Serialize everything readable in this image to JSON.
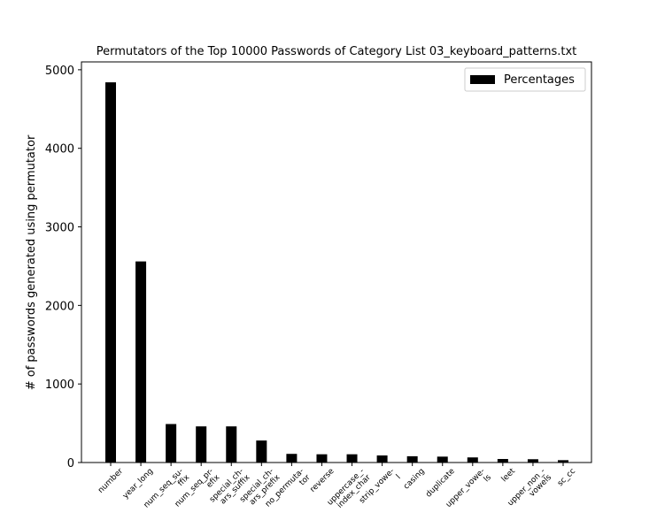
{
  "chart_data": {
    "type": "bar",
    "title": "Permutators of the Top 10000 Passwords of Category List 03_keyboard_patterns.txt",
    "xlabel": "",
    "ylabel": "# of passwords generated using permutator",
    "ylim": [
      0,
      5100
    ],
    "yticks": [
      0,
      1000,
      2000,
      3000,
      4000,
      5000
    ],
    "categories": [
      "number",
      "year_long",
      "num_seq_su-\nffix",
      "num_seq_pr-\nefix",
      "special_ch-\nars_suffix",
      "special_ch-\nars_prefix",
      "no_permuta-\ntor",
      "reverse",
      "uppercase_-\nindex_char",
      "strip_vowe-\nl",
      "casing",
      "duplicate",
      "upper_vowe-\nls",
      "leet",
      "upper_non_-\nvowels",
      "sc_cc"
    ],
    "series": [
      {
        "name": "Percentages",
        "values": [
          4840,
          2560,
          490,
          460,
          460,
          280,
          110,
          105,
          105,
          90,
          80,
          75,
          65,
          45,
          42,
          30
        ]
      }
    ],
    "legend": {
      "position": "upper-right"
    },
    "grid": false,
    "bar_color": "#000000"
  }
}
